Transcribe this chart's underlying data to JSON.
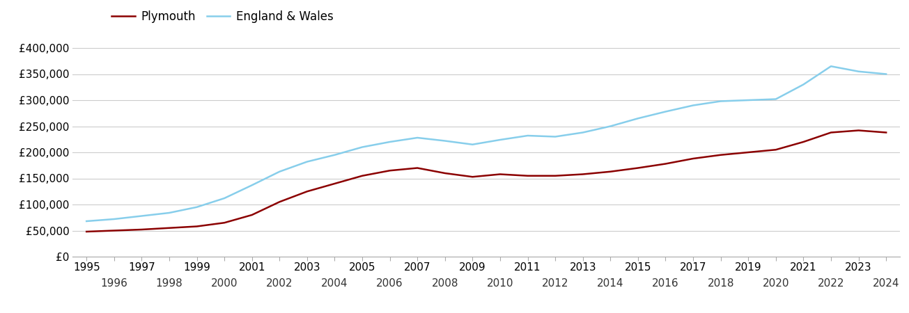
{
  "years": [
    1995,
    1996,
    1997,
    1998,
    1999,
    2000,
    2001,
    2002,
    2003,
    2004,
    2005,
    2006,
    2007,
    2008,
    2009,
    2010,
    2011,
    2012,
    2013,
    2014,
    2015,
    2016,
    2017,
    2018,
    2019,
    2020,
    2021,
    2022,
    2023,
    2024
  ],
  "plymouth": [
    48000,
    50000,
    52000,
    55000,
    58000,
    65000,
    80000,
    105000,
    125000,
    140000,
    155000,
    165000,
    170000,
    160000,
    153000,
    158000,
    155000,
    155000,
    158000,
    163000,
    170000,
    178000,
    188000,
    195000,
    200000,
    205000,
    220000,
    238000,
    242000,
    238000
  ],
  "england_wales": [
    68000,
    72000,
    78000,
    84000,
    95000,
    112000,
    137000,
    163000,
    182000,
    195000,
    210000,
    220000,
    228000,
    222000,
    215000,
    224000,
    232000,
    230000,
    238000,
    250000,
    265000,
    278000,
    290000,
    298000,
    300000,
    302000,
    330000,
    365000,
    355000,
    350000
  ],
  "plymouth_color": "#8B0000",
  "england_wales_color": "#87CEEB",
  "background_color": "#ffffff",
  "grid_color": "#cccccc",
  "ylim": [
    0,
    420000
  ],
  "yticks": [
    0,
    50000,
    100000,
    150000,
    200000,
    250000,
    300000,
    350000,
    400000
  ],
  "legend_labels": [
    "Plymouth",
    "England & Wales"
  ],
  "line_width": 1.8,
  "tick_fontsize": 11,
  "legend_fontsize": 12
}
